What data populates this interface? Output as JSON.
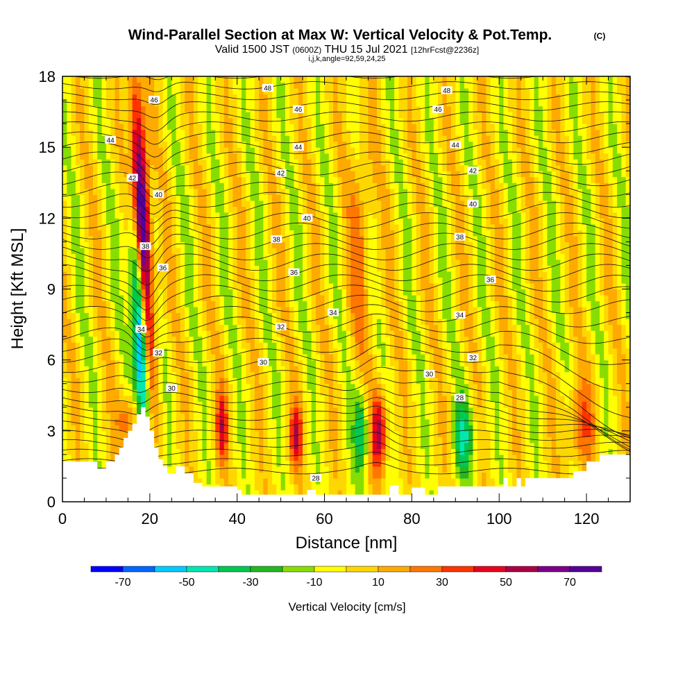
{
  "chart_data": {
    "type": "heatmap",
    "title": "Wind-Parallel Section at Max W: Vertical Velocity & Pot.Temp.",
    "copyright": "(C)",
    "subtitle": {
      "valid_prefix": "Valid 1500 JST",
      "utc": "(0600Z)",
      "date": "THU 15 Jul 2021",
      "forecast": "[12hrFcst@2236z]"
    },
    "indices": "i,j,k,angle=92,59,24,25",
    "xlabel": "Distance [nm]",
    "ylabel": "Height [Kft MSL]",
    "xlim": [
      0,
      130
    ],
    "ylim": [
      0,
      18
    ],
    "x_ticks": [
      0,
      20,
      40,
      60,
      80,
      100,
      120
    ],
    "y_ticks": [
      0,
      3,
      6,
      9,
      12,
      15,
      18
    ],
    "colorbar": {
      "label": "Vertical Velocity [cm/s]",
      "levels": [
        -80,
        -70,
        -60,
        -50,
        -40,
        -30,
        -20,
        -10,
        0,
        10,
        20,
        30,
        40,
        50,
        60,
        70,
        80
      ],
      "tick_labels": [
        -70,
        -50,
        -30,
        -10,
        10,
        30,
        50,
        70
      ],
      "colors": [
        "#0000ff",
        "#0066ff",
        "#00ccff",
        "#00e8b0",
        "#00c850",
        "#22b822",
        "#88dd00",
        "#ffff00",
        "#ffd700",
        "#ffaa00",
        "#ff7700",
        "#ff3300",
        "#e8001e",
        "#aa0044",
        "#7a0088",
        "#550099"
      ]
    },
    "theta_labels": [
      {
        "value": 48,
        "x": 47,
        "y": 17.5
      },
      {
        "value": 48,
        "x": 88,
        "y": 17.4
      },
      {
        "value": 46,
        "x": 21,
        "y": 17.0
      },
      {
        "value": 46,
        "x": 54,
        "y": 16.6
      },
      {
        "value": 46,
        "x": 86,
        "y": 16.6
      },
      {
        "value": 44,
        "x": 11,
        "y": 15.3
      },
      {
        "value": 44,
        "x": 54,
        "y": 15.0
      },
      {
        "value": 44,
        "x": 90,
        "y": 15.1
      },
      {
        "value": 42,
        "x": 16,
        "y": 13.7
      },
      {
        "value": 42,
        "x": 50,
        "y": 13.9
      },
      {
        "value": 42,
        "x": 94,
        "y": 14.0
      },
      {
        "value": 40,
        "x": 22,
        "y": 13.0
      },
      {
        "value": 40,
        "x": 56,
        "y": 12.0
      },
      {
        "value": 40,
        "x": 94,
        "y": 12.6
      },
      {
        "value": 38,
        "x": 19,
        "y": 10.8
      },
      {
        "value": 38,
        "x": 49,
        "y": 11.1
      },
      {
        "value": 38,
        "x": 91,
        "y": 11.2
      },
      {
        "value": 36,
        "x": 23,
        "y": 9.9
      },
      {
        "value": 36,
        "x": 53,
        "y": 9.7
      },
      {
        "value": 36,
        "x": 98,
        "y": 9.4
      },
      {
        "value": 34,
        "x": 18,
        "y": 7.3
      },
      {
        "value": 34,
        "x": 62,
        "y": 8.0
      },
      {
        "value": 34,
        "x": 91,
        "y": 7.9
      },
      {
        "value": 32,
        "x": 22,
        "y": 6.3
      },
      {
        "value": 32,
        "x": 50,
        "y": 7.4
      },
      {
        "value": 32,
        "x": 94,
        "y": 6.1
      },
      {
        "value": 30,
        "x": 25,
        "y": 4.8
      },
      {
        "value": 30,
        "x": 46,
        "y": 5.9
      },
      {
        "value": 30,
        "x": 84,
        "y": 5.4
      },
      {
        "value": 28,
        "x": 58,
        "y": 1.0
      },
      {
        "value": 28,
        "x": 91,
        "y": 4.4
      }
    ]
  }
}
